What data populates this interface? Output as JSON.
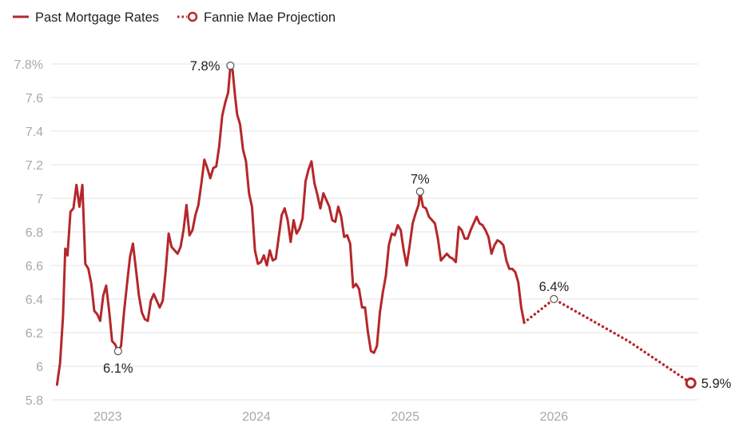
{
  "legend": {
    "past_label": "Past Mortgage Rates",
    "projection_label": "Fannie Mae Projection"
  },
  "colors": {
    "line": "#b5272a",
    "grid": "#e3e3e3",
    "axis_text": "#a8a8a8",
    "label_text": "#222222",
    "marker": "#555555",
    "background": "#ffffff"
  },
  "chart_data": {
    "type": "line",
    "title": "",
    "xlabel": "",
    "ylabel": "",
    "x_unit": "year",
    "xlim": [
      2022.62,
      2026.97
    ],
    "ylim": [
      5.8,
      7.8
    ],
    "y_ticks": [
      {
        "value": 5.8,
        "label": "5.8"
      },
      {
        "value": 6.0,
        "label": "6"
      },
      {
        "value": 6.2,
        "label": "6.2"
      },
      {
        "value": 6.4,
        "label": "6.4"
      },
      {
        "value": 6.6,
        "label": "6.6"
      },
      {
        "value": 6.8,
        "label": "6.8"
      },
      {
        "value": 7.0,
        "label": "7"
      },
      {
        "value": 7.2,
        "label": "7.2"
      },
      {
        "value": 7.4,
        "label": "7.4"
      },
      {
        "value": 7.6,
        "label": "7.6"
      },
      {
        "value": 7.8,
        "label": "7.8%"
      }
    ],
    "x_ticks": [
      {
        "value": 2023.0,
        "label": "2023"
      },
      {
        "value": 2024.0,
        "label": "2024"
      },
      {
        "value": 2025.0,
        "label": "2025"
      },
      {
        "value": 2026.0,
        "label": "2026"
      }
    ],
    "series": [
      {
        "name": "Past Mortgage Rates",
        "style": "solid",
        "points": [
          [
            2022.66,
            5.89
          ],
          [
            2022.68,
            6.02
          ],
          [
            2022.7,
            6.3
          ],
          [
            2022.715,
            6.7
          ],
          [
            2022.73,
            6.66
          ],
          [
            2022.75,
            6.92
          ],
          [
            2022.77,
            6.94
          ],
          [
            2022.79,
            7.08
          ],
          [
            2022.81,
            6.95
          ],
          [
            2022.83,
            7.08
          ],
          [
            2022.85,
            6.61
          ],
          [
            2022.87,
            6.58
          ],
          [
            2022.89,
            6.49
          ],
          [
            2022.91,
            6.33
          ],
          [
            2022.93,
            6.31
          ],
          [
            2022.95,
            6.27
          ],
          [
            2022.97,
            6.42
          ],
          [
            2022.99,
            6.48
          ],
          [
            2023.01,
            6.33
          ],
          [
            2023.03,
            6.15
          ],
          [
            2023.05,
            6.13
          ],
          [
            2023.07,
            6.09
          ],
          [
            2023.09,
            6.12
          ],
          [
            2023.11,
            6.32
          ],
          [
            2023.13,
            6.49
          ],
          [
            2023.15,
            6.65
          ],
          [
            2023.17,
            6.73
          ],
          [
            2023.19,
            6.58
          ],
          [
            2023.21,
            6.42
          ],
          [
            2023.23,
            6.32
          ],
          [
            2023.25,
            6.28
          ],
          [
            2023.27,
            6.27
          ],
          [
            2023.29,
            6.39
          ],
          [
            2023.31,
            6.43
          ],
          [
            2023.33,
            6.39
          ],
          [
            2023.35,
            6.35
          ],
          [
            2023.37,
            6.39
          ],
          [
            2023.39,
            6.57
          ],
          [
            2023.41,
            6.79
          ],
          [
            2023.43,
            6.71
          ],
          [
            2023.45,
            6.69
          ],
          [
            2023.47,
            6.67
          ],
          [
            2023.49,
            6.71
          ],
          [
            2023.51,
            6.81
          ],
          [
            2023.53,
            6.96
          ],
          [
            2023.55,
            6.78
          ],
          [
            2023.57,
            6.81
          ],
          [
            2023.59,
            6.9
          ],
          [
            2023.61,
            6.96
          ],
          [
            2023.63,
            7.09
          ],
          [
            2023.65,
            7.23
          ],
          [
            2023.67,
            7.18
          ],
          [
            2023.69,
            7.12
          ],
          [
            2023.71,
            7.18
          ],
          [
            2023.73,
            7.19
          ],
          [
            2023.75,
            7.31
          ],
          [
            2023.77,
            7.49
          ],
          [
            2023.79,
            7.57
          ],
          [
            2023.81,
            7.63
          ],
          [
            2023.825,
            7.79
          ],
          [
            2023.84,
            7.76
          ],
          [
            2023.855,
            7.62
          ],
          [
            2023.87,
            7.5
          ],
          [
            2023.89,
            7.44
          ],
          [
            2023.91,
            7.29
          ],
          [
            2023.93,
            7.22
          ],
          [
            2023.95,
            7.03
          ],
          [
            2023.97,
            6.95
          ],
          [
            2023.99,
            6.69
          ],
          [
            2024.01,
            6.61
          ],
          [
            2024.03,
            6.62
          ],
          [
            2024.05,
            6.66
          ],
          [
            2024.07,
            6.6
          ],
          [
            2024.09,
            6.69
          ],
          [
            2024.11,
            6.63
          ],
          [
            2024.13,
            6.64
          ],
          [
            2024.15,
            6.77
          ],
          [
            2024.17,
            6.9
          ],
          [
            2024.19,
            6.94
          ],
          [
            2024.21,
            6.87
          ],
          [
            2024.23,
            6.74
          ],
          [
            2024.25,
            6.87
          ],
          [
            2024.27,
            6.79
          ],
          [
            2024.29,
            6.82
          ],
          [
            2024.31,
            6.88
          ],
          [
            2024.33,
            7.1
          ],
          [
            2024.35,
            7.17
          ],
          [
            2024.37,
            7.22
          ],
          [
            2024.39,
            7.09
          ],
          [
            2024.41,
            7.02
          ],
          [
            2024.43,
            6.94
          ],
          [
            2024.45,
            7.03
          ],
          [
            2024.47,
            6.99
          ],
          [
            2024.49,
            6.95
          ],
          [
            2024.51,
            6.87
          ],
          [
            2024.53,
            6.86
          ],
          [
            2024.55,
            6.95
          ],
          [
            2024.57,
            6.89
          ],
          [
            2024.59,
            6.77
          ],
          [
            2024.61,
            6.78
          ],
          [
            2024.63,
            6.73
          ],
          [
            2024.65,
            6.47
          ],
          [
            2024.67,
            6.49
          ],
          [
            2024.69,
            6.46
          ],
          [
            2024.71,
            6.35
          ],
          [
            2024.73,
            6.35
          ],
          [
            2024.75,
            6.2
          ],
          [
            2024.77,
            6.09
          ],
          [
            2024.79,
            6.08
          ],
          [
            2024.81,
            6.12
          ],
          [
            2024.83,
            6.32
          ],
          [
            2024.85,
            6.44
          ],
          [
            2024.87,
            6.54
          ],
          [
            2024.89,
            6.72
          ],
          [
            2024.91,
            6.79
          ],
          [
            2024.93,
            6.78
          ],
          [
            2024.95,
            6.84
          ],
          [
            2024.97,
            6.81
          ],
          [
            2024.99,
            6.69
          ],
          [
            2025.01,
            6.6
          ],
          [
            2025.03,
            6.72
          ],
          [
            2025.05,
            6.85
          ],
          [
            2025.07,
            6.91
          ],
          [
            2025.09,
            6.96
          ],
          [
            2025.1,
            7.04
          ],
          [
            2025.12,
            6.95
          ],
          [
            2025.14,
            6.94
          ],
          [
            2025.16,
            6.89
          ],
          [
            2025.18,
            6.87
          ],
          [
            2025.2,
            6.85
          ],
          [
            2025.22,
            6.76
          ],
          [
            2025.24,
            6.63
          ],
          [
            2025.26,
            6.65
          ],
          [
            2025.28,
            6.67
          ],
          [
            2025.3,
            6.65
          ],
          [
            2025.32,
            6.64
          ],
          [
            2025.34,
            6.62
          ],
          [
            2025.36,
            6.83
          ],
          [
            2025.38,
            6.81
          ],
          [
            2025.4,
            6.76
          ],
          [
            2025.42,
            6.76
          ],
          [
            2025.44,
            6.81
          ],
          [
            2025.46,
            6.85
          ],
          [
            2025.48,
            6.89
          ],
          [
            2025.5,
            6.85
          ],
          [
            2025.52,
            6.84
          ],
          [
            2025.54,
            6.81
          ],
          [
            2025.56,
            6.77
          ],
          [
            2025.58,
            6.67
          ],
          [
            2025.6,
            6.72
          ],
          [
            2025.62,
            6.75
          ],
          [
            2025.64,
            6.74
          ],
          [
            2025.66,
            6.72
          ],
          [
            2025.68,
            6.63
          ],
          [
            2025.7,
            6.58
          ],
          [
            2025.72,
            6.58
          ],
          [
            2025.74,
            6.56
          ],
          [
            2025.76,
            6.5
          ],
          [
            2025.78,
            6.35
          ],
          [
            2025.8,
            6.26
          ]
        ]
      },
      {
        "name": "Fannie Mae Projection",
        "style": "dotted",
        "points": [
          [
            2025.8,
            6.26
          ],
          [
            2025.9,
            6.33
          ],
          [
            2026.0,
            6.4
          ],
          [
            2026.5,
            6.15
          ],
          [
            2026.92,
            5.9
          ]
        ]
      }
    ],
    "annotations": [
      {
        "x": 2023.07,
        "y": 6.09,
        "label": "6.1%",
        "position": "below",
        "marker": "open-circle"
      },
      {
        "x": 2023.825,
        "y": 7.79,
        "label": "7.8%",
        "position": "left",
        "marker": "open-circle"
      },
      {
        "x": 2025.1,
        "y": 7.04,
        "label": "7%",
        "position": "above",
        "marker": "open-circle"
      },
      {
        "x": 2026.0,
        "y": 6.4,
        "label": "6.4%",
        "position": "above",
        "marker": "open-circle"
      },
      {
        "x": 2026.92,
        "y": 5.9,
        "label": "5.9%",
        "position": "right",
        "marker": "projection-circle"
      }
    ]
  }
}
